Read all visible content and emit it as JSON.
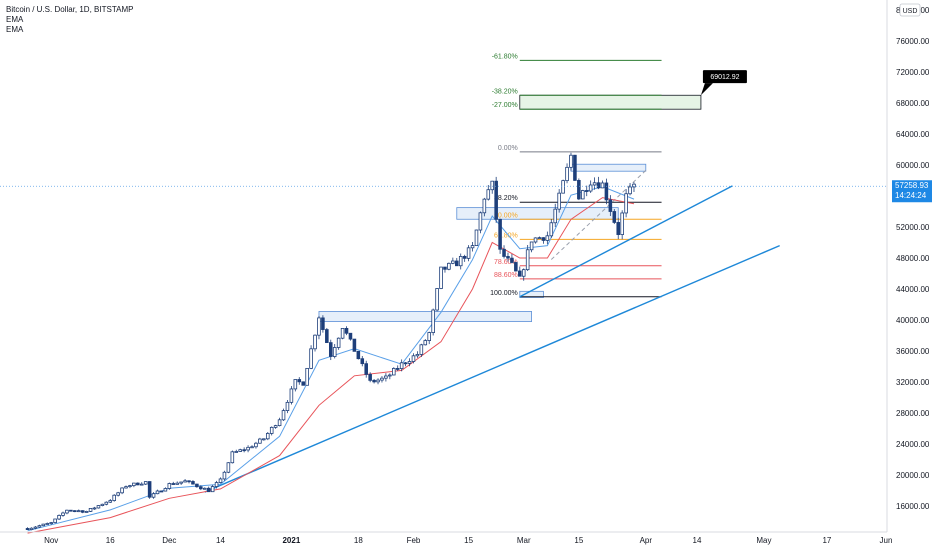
{
  "legend": {
    "symbol": "Bitcoin / U.S. Dollar, 1D, BITSTAMP",
    "indicator_1": "EMA",
    "indicator_2": "EMA"
  },
  "currency_badge": "USD",
  "last_price_label": "57258.93",
  "countdown_label": "14:24:24",
  "target_callout": "69012.92",
  "colors": {
    "up_candle": "#ffffff",
    "down_candle": "#1e3f7a",
    "ema_fast": "#5aa0e8",
    "ema_slow": "#e8545a",
    "trendline": "#1e88d8",
    "fib_extension": "#2e7d32",
    "zone_fill": "#dbe8f8",
    "zone_border": "#5b8fd6",
    "callout_bg": "#000000"
  },
  "chart_data": {
    "type": "candlestick",
    "title": "",
    "ylim": [
      14000,
      80000
    ],
    "y_ticks": [
      16000,
      20000,
      24000,
      28000,
      32000,
      36000,
      40000,
      44000,
      48000,
      52000,
      56000,
      60000,
      64000,
      68000,
      72000,
      76000,
      80000
    ],
    "y_tick_labels": [
      "16000.00",
      "20000.00",
      "24000.00",
      "28000.00",
      "32000.00",
      "36000.00",
      "40000.00",
      "44000.00",
      "48000.00",
      "52000.00",
      "56000.00",
      "60000.00",
      "64000.00",
      "68000.00",
      "72000.00",
      "76000.00",
      "80000.00"
    ],
    "x_range": [
      "2020-10-26",
      "2021-06-01"
    ],
    "x_ticks": [
      {
        "date": "2020-11-01",
        "label": "Nov"
      },
      {
        "date": "2020-11-16",
        "label": "16"
      },
      {
        "date": "2020-12-01",
        "label": "Dec"
      },
      {
        "date": "2020-12-14",
        "label": "14"
      },
      {
        "date": "2021-01-01",
        "label": "2021"
      },
      {
        "date": "2021-01-18",
        "label": "18"
      },
      {
        "date": "2021-02-01",
        "label": "Feb"
      },
      {
        "date": "2021-02-15",
        "label": "15"
      },
      {
        "date": "2021-03-01",
        "label": "Mar"
      },
      {
        "date": "2021-03-15",
        "label": "15"
      },
      {
        "date": "2021-04-01",
        "label": "Apr"
      },
      {
        "date": "2021-04-14",
        "label": "14"
      },
      {
        "date": "2021-05-01",
        "label": "May"
      },
      {
        "date": "2021-05-17",
        "label": "17"
      },
      {
        "date": "2021-06-01",
        "label": "Jun"
      }
    ],
    "close_path": [
      [
        "2020-10-26",
        13100
      ],
      [
        "2020-11-01",
        13800
      ],
      [
        "2020-11-05",
        15500
      ],
      [
        "2020-11-10",
        15300
      ],
      [
        "2020-11-16",
        16800
      ],
      [
        "2020-11-20",
        18600
      ],
      [
        "2020-11-25",
        19100
      ],
      [
        "2020-11-26",
        17100
      ],
      [
        "2020-12-01",
        18800
      ],
      [
        "2020-12-05",
        19200
      ],
      [
        "2020-12-11",
        18000
      ],
      [
        "2020-12-14",
        19300
      ],
      [
        "2020-12-17",
        22800
      ],
      [
        "2020-12-21",
        23500
      ],
      [
        "2020-12-25",
        24700
      ],
      [
        "2020-12-29",
        27300
      ],
      [
        "2021-01-02",
        32000
      ],
      [
        "2021-01-04",
        31900
      ],
      [
        "2021-01-08",
        40500
      ],
      [
        "2021-01-11",
        35500
      ],
      [
        "2021-01-14",
        39200
      ],
      [
        "2021-01-17",
        36100
      ],
      [
        "2021-01-21",
        32000
      ],
      [
        "2021-01-25",
        32500
      ],
      [
        "2021-01-29",
        34300
      ],
      [
        "2021-02-02",
        35600
      ],
      [
        "2021-02-05",
        38300
      ],
      [
        "2021-02-08",
        46400
      ],
      [
        "2021-02-12",
        47400
      ],
      [
        "2021-02-16",
        49300
      ],
      [
        "2021-02-19",
        55900
      ],
      [
        "2021-02-21",
        57400
      ],
      [
        "2021-02-23",
        48800
      ],
      [
        "2021-02-26",
        47000
      ],
      [
        "2021-02-28",
        45200
      ],
      [
        "2021-03-03",
        50400
      ],
      [
        "2021-03-07",
        50900
      ],
      [
        "2021-03-10",
        55800
      ],
      [
        "2021-03-13",
        61200
      ],
      [
        "2021-03-15",
        55800
      ],
      [
        "2021-03-18",
        58000
      ],
      [
        "2021-03-21",
        57500
      ],
      [
        "2021-03-23",
        54300
      ],
      [
        "2021-03-25",
        51300
      ],
      [
        "2021-03-27",
        55900
      ],
      [
        "2021-03-29",
        57258.93
      ]
    ],
    "ema_fast": [
      [
        "2020-10-26",
        12800
      ],
      [
        "2020-11-16",
        15500
      ],
      [
        "2020-12-01",
        18300
      ],
      [
        "2020-12-14",
        18800
      ],
      [
        "2020-12-29",
        25000
      ],
      [
        "2021-01-08",
        34800
      ],
      [
        "2021-01-17",
        36300
      ],
      [
        "2021-01-29",
        34300
      ],
      [
        "2021-02-08",
        41000
      ],
      [
        "2021-02-16",
        47800
      ],
      [
        "2021-02-21",
        53400
      ],
      [
        "2021-02-28",
        49200
      ],
      [
        "2021-03-07",
        49600
      ],
      [
        "2021-03-13",
        56100
      ],
      [
        "2021-03-21",
        57200
      ],
      [
        "2021-03-29",
        55600
      ]
    ],
    "ema_slow": [
      [
        "2020-10-26",
        12500
      ],
      [
        "2020-11-16",
        14500
      ],
      [
        "2020-12-01",
        17000
      ],
      [
        "2020-12-14",
        18200
      ],
      [
        "2020-12-29",
        22500
      ],
      [
        "2021-01-08",
        29000
      ],
      [
        "2021-01-17",
        32800
      ],
      [
        "2021-01-29",
        33500
      ],
      [
        "2021-02-08",
        37200
      ],
      [
        "2021-02-16",
        44000
      ],
      [
        "2021-02-21",
        50000
      ],
      [
        "2021-02-28",
        48000
      ],
      [
        "2021-03-07",
        48000
      ],
      [
        "2021-03-13",
        53000
      ],
      [
        "2021-03-21",
        55800
      ],
      [
        "2021-03-29",
        55000
      ]
    ],
    "fib_retracement": {
      "x_start": "2021-02-28",
      "x_end": "2021-04-05",
      "levels": [
        {
          "label": "0.00%",
          "price": 61700,
          "color": "#787b86"
        },
        {
          "label": "38.20%",
          "price": 55200,
          "color": "#131722"
        },
        {
          "label": "50.00%",
          "price": 53000,
          "color": "#f5a623"
        },
        {
          "label": "61.80%",
          "price": 50400,
          "color": "#f5a623"
        },
        {
          "label": "78.60%",
          "price": 47000,
          "color": "#e8545a"
        },
        {
          "label": "88.60%",
          "price": 45300,
          "color": "#e8545a"
        },
        {
          "label": "100.00%",
          "price": 43000,
          "color": "#131722"
        }
      ]
    },
    "fib_extension": {
      "x_start": "2021-02-28",
      "x_end": "2021-04-05",
      "levels": [
        {
          "label": "-61.80%",
          "price": 73500
        },
        {
          "label": "-38.20%",
          "price": 69000
        },
        {
          "label": "-27.00%",
          "price": 67200
        }
      ]
    },
    "target_zone": {
      "x_start": "2021-02-28",
      "x_end": "2021-04-15",
      "price_top": 69000,
      "price_bottom": 67200
    },
    "callout": {
      "date": "2021-04-15",
      "price": 69012.92
    },
    "zones": [
      {
        "x_start": "2021-01-08",
        "x_end": "2021-03-03",
        "price_top": 41100,
        "price_bottom": 39800
      },
      {
        "x_start": "2021-02-12",
        "x_end": "2021-03-25",
        "price_top": 54500,
        "price_bottom": 53000
      },
      {
        "x_start": "2021-03-13",
        "x_end": "2021-04-01",
        "price_top": 60100,
        "price_bottom": 59200
      },
      {
        "x_start": "2021-02-28",
        "x_end": "2021-03-06",
        "price_top": 43700,
        "price_bottom": 42900
      }
    ],
    "trendlines": [
      {
        "from": [
          "2020-12-10",
          17800
        ],
        "to": [
          "2021-05-05",
          49600
        ]
      },
      {
        "from": [
          "2021-02-28",
          43000
        ],
        "to": [
          "2021-04-23",
          57300
        ]
      }
    ],
    "projection": {
      "from": [
        "2021-03-08",
        47800
      ],
      "to": [
        "2021-04-01",
        59300
      ]
    }
  }
}
